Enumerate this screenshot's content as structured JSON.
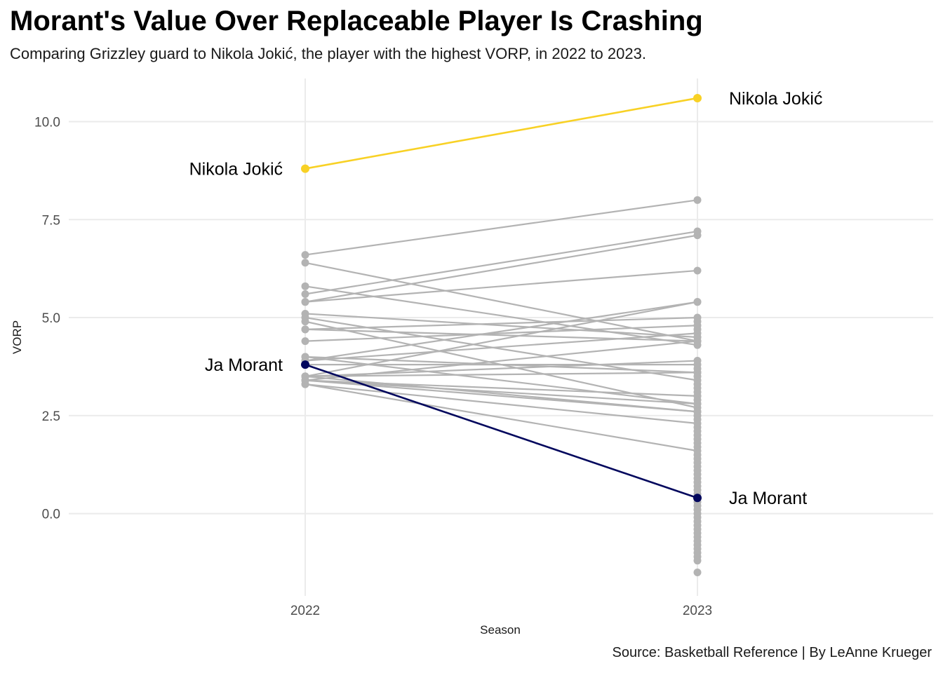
{
  "title": "Morant's Value Over Replaceable Player Is Crashing",
  "subtitle": "Comparing Grizzley guard to Nikola Jokić, the player with the highest VORP, in 2022 to 2023.",
  "caption": "Source: Basketball Reference | By LeAnne Krueger",
  "chart_data": {
    "type": "line",
    "xlabel": "Season",
    "ylabel": "VORP",
    "categories": [
      "2022",
      "2023"
    ],
    "ylim": [
      -2.1,
      11.1
    ],
    "y_ticks": [
      0.0,
      2.5,
      5.0,
      7.5,
      10.0
    ],
    "y_tick_labels": [
      "0.0",
      "2.5",
      "5.0",
      "7.5",
      "10.0"
    ],
    "grid": true,
    "legend": "none",
    "colors": {
      "background_series": "#b3b3b3",
      "highlight_jokic": "#f8d125",
      "highlight_morant": "#02075d",
      "grid": "#ebebeb"
    },
    "series": [
      {
        "name": "Nikola Jokić",
        "values": [
          8.8,
          10.6
        ],
        "highlight": "jokic"
      },
      {
        "name": "Ja Morant",
        "values": [
          3.8,
          0.4
        ],
        "highlight": "morant"
      },
      {
        "values": [
          6.6,
          8.0
        ]
      },
      {
        "values": [
          6.4,
          4.4
        ]
      },
      {
        "values": [
          5.8,
          4.3
        ]
      },
      {
        "values": [
          5.6,
          7.2
        ]
      },
      {
        "values": [
          5.4,
          7.1
        ]
      },
      {
        "values": [
          5.4,
          6.2
        ]
      },
      {
        "values": [
          5.1,
          4.5
        ]
      },
      {
        "values": [
          5.0,
          3.4
        ]
      },
      {
        "values": [
          4.9,
          2.7
        ]
      },
      {
        "values": [
          4.7,
          5.0
        ]
      },
      {
        "values": [
          4.7,
          4.4
        ]
      },
      {
        "values": [
          4.4,
          4.8
        ]
      },
      {
        "values": [
          4.0,
          2.8
        ]
      },
      {
        "values": [
          4.0,
          3.6
        ]
      },
      {
        "values": [
          3.9,
          5.4
        ]
      },
      {
        "values": [
          3.9,
          4.6
        ]
      },
      {
        "values": [
          3.8,
          3.8
        ]
      },
      {
        "values": [
          3.5,
          5.4
        ]
      },
      {
        "values": [
          3.5,
          3.9
        ]
      },
      {
        "values": [
          3.5,
          3.6
        ]
      },
      {
        "values": [
          3.4,
          4.4
        ]
      },
      {
        "values": [
          3.4,
          3.0
        ]
      },
      {
        "values": [
          3.4,
          2.6
        ]
      },
      {
        "values": [
          3.3,
          2.3
        ]
      },
      {
        "values": [
          3.3,
          1.6
        ]
      },
      {
        "values": [
          3.5,
          2.6
        ]
      },
      {
        "values": [
          3.4,
          2.8
        ]
      }
    ],
    "extra_2023_points": [
      4.9,
      4.7,
      4.5,
      3.7,
      3.5,
      3.3,
      3.2,
      3.1,
      3.0,
      2.9,
      2.5,
      2.4,
      2.2,
      2.1,
      2.0,
      1.9,
      1.8,
      1.7,
      1.5,
      1.4,
      1.3,
      1.2,
      1.1,
      1.0,
      0.9,
      0.8,
      0.7,
      0.6,
      0.5,
      0.3,
      0.2,
      0.1,
      0.0,
      -0.1,
      -0.2,
      -0.3,
      -0.4,
      -0.5,
      -0.6,
      -0.7,
      -0.8,
      -0.9,
      -1.0,
      -1.1,
      -1.2,
      -1.5
    ],
    "annotations": [
      {
        "text": "Nikola Jokić",
        "x": "2022",
        "y": 8.8,
        "side": "left"
      },
      {
        "text": "Nikola Jokić",
        "x": "2023",
        "y": 10.6,
        "side": "right"
      },
      {
        "text": "Ja Morant",
        "x": "2022",
        "y": 3.8,
        "side": "left"
      },
      {
        "text": "Ja Morant",
        "x": "2023",
        "y": 0.4,
        "side": "right"
      }
    ]
  }
}
